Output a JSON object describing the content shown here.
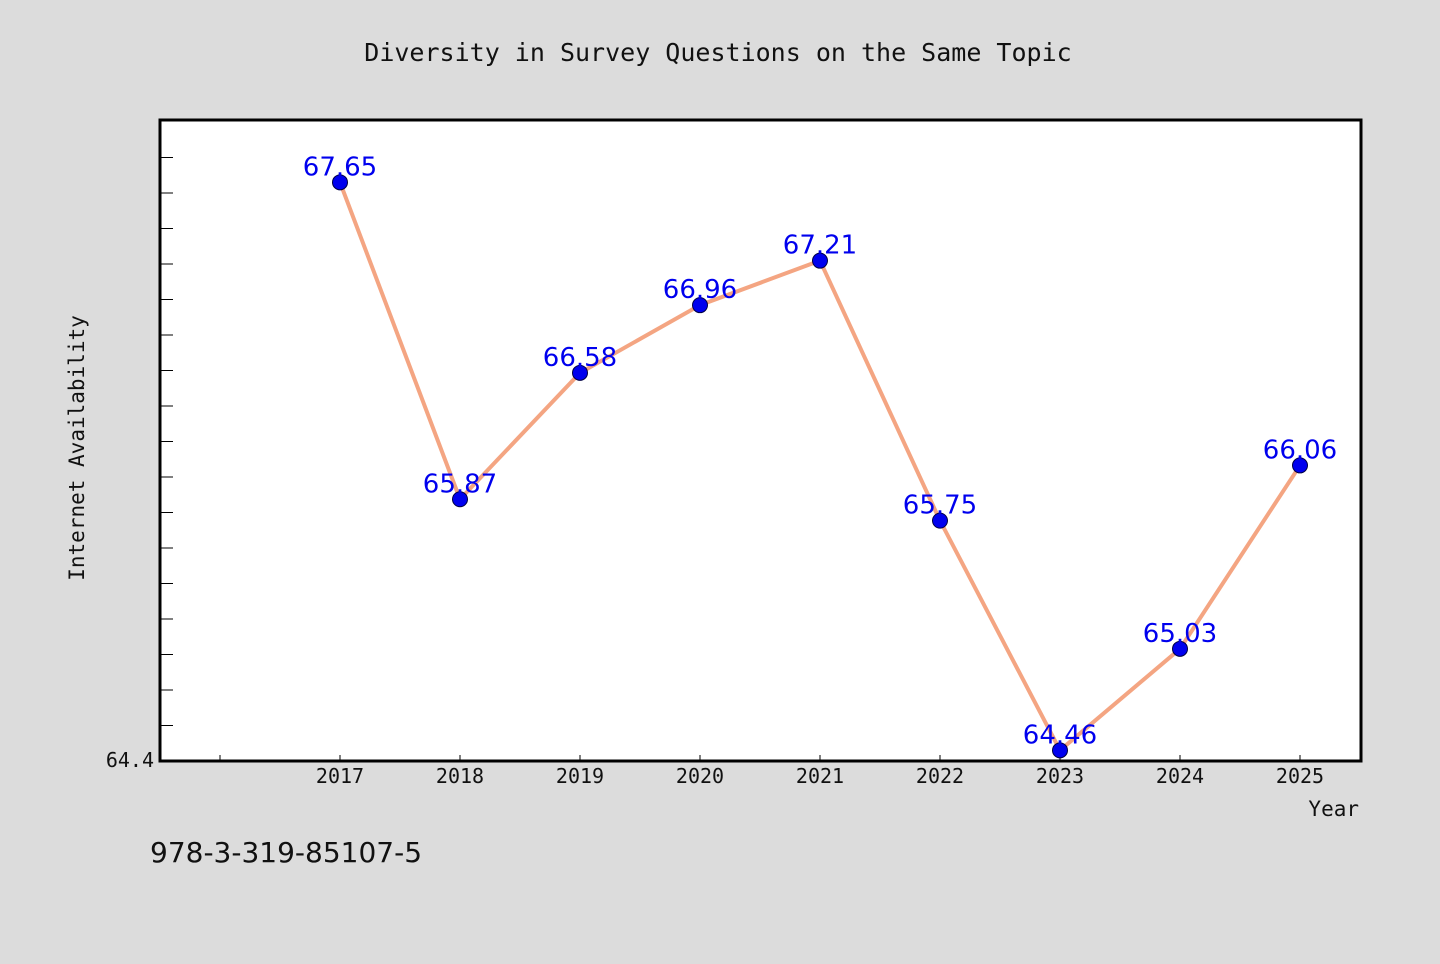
{
  "chart_data": {
    "type": "line",
    "title": "Diversity in Survey Questions on the Same Topic",
    "xlabel": "Year",
    "ylabel": "Internet Availability",
    "categories": [
      "2017",
      "2018",
      "2019",
      "2020",
      "2021",
      "2022",
      "2023",
      "2024",
      "2025"
    ],
    "series": [
      {
        "values": [
          67.65,
          65.87,
          66.58,
          66.96,
          67.21,
          65.75,
          64.46,
          65.03,
          66.06
        ]
      }
    ],
    "data_labels": [
      "67.65",
      "65.87",
      "66.58",
      "66.96",
      "67.21",
      "65.75",
      "64.46",
      "65.03",
      "66.06"
    ],
    "ylim": [
      64.4,
      68.0
    ],
    "y_tick_label": "64.4",
    "grid": false,
    "legend": "none",
    "colors": {
      "line": "#f4a582",
      "marker": "#0000ee",
      "data_label": "#0000ee",
      "background": "#dcdcdc",
      "plot_background": "#ffffff"
    }
  },
  "footer": {
    "isbn": "978-3-319-85107-5"
  }
}
